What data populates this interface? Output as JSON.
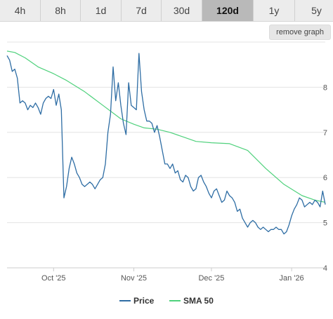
{
  "timeframes": {
    "items": [
      "4h",
      "8h",
      "1d",
      "7d",
      "30d",
      "120d",
      "1y",
      "5y"
    ],
    "active": "120d"
  },
  "remove_graph_label": "remove graph",
  "chart_data": {
    "type": "line",
    "xlabel": "",
    "ylabel": "",
    "ylim": [
      4,
      9
    ],
    "y_ticks": [
      "4",
      "5",
      "6",
      "7",
      "8"
    ],
    "x_ticks": [
      "Oct '25",
      "Nov '25",
      "Dec '25",
      "Jan '26"
    ],
    "grid": true,
    "legend_position": "bottom",
    "series": [
      {
        "name": "Price",
        "color": "#2e6da4",
        "points": [
          [
            "2025-09-13",
            8.7
          ],
          [
            "2025-09-14",
            8.6
          ],
          [
            "2025-09-15",
            8.35
          ],
          [
            "2025-09-16",
            8.4
          ],
          [
            "2025-09-17",
            8.2
          ],
          [
            "2025-09-18",
            7.65
          ],
          [
            "2025-09-19",
            7.7
          ],
          [
            "2025-09-20",
            7.65
          ],
          [
            "2025-09-21",
            7.5
          ],
          [
            "2025-09-22",
            7.6
          ],
          [
            "2025-09-23",
            7.55
          ],
          [
            "2025-09-24",
            7.65
          ],
          [
            "2025-09-25",
            7.55
          ],
          [
            "2025-09-26",
            7.4
          ],
          [
            "2025-09-27",
            7.65
          ],
          [
            "2025-09-28",
            7.75
          ],
          [
            "2025-09-29",
            7.8
          ],
          [
            "2025-09-30",
            7.75
          ],
          [
            "2025-10-01",
            7.95
          ],
          [
            "2025-10-02",
            7.6
          ],
          [
            "2025-10-03",
            7.85
          ],
          [
            "2025-10-04",
            7.5
          ],
          [
            "2025-10-05",
            5.55
          ],
          [
            "2025-10-06",
            5.8
          ],
          [
            "2025-10-07",
            6.2
          ],
          [
            "2025-10-08",
            6.45
          ],
          [
            "2025-10-09",
            6.3
          ],
          [
            "2025-10-10",
            6.1
          ],
          [
            "2025-10-11",
            6.0
          ],
          [
            "2025-10-12",
            5.85
          ],
          [
            "2025-10-13",
            5.8
          ],
          [
            "2025-10-14",
            5.85
          ],
          [
            "2025-10-15",
            5.9
          ],
          [
            "2025-10-16",
            5.85
          ],
          [
            "2025-10-17",
            5.75
          ],
          [
            "2025-10-18",
            5.85
          ],
          [
            "2025-10-19",
            5.95
          ],
          [
            "2025-10-20",
            6.0
          ],
          [
            "2025-10-21",
            6.3
          ],
          [
            "2025-10-22",
            7.0
          ],
          [
            "2025-10-23",
            7.4
          ],
          [
            "2025-10-24",
            8.45
          ],
          [
            "2025-10-25",
            7.7
          ],
          [
            "2025-10-26",
            8.1
          ],
          [
            "2025-10-27",
            7.6
          ],
          [
            "2025-10-28",
            7.2
          ],
          [
            "2025-10-29",
            6.95
          ],
          [
            "2025-10-30",
            8.1
          ],
          [
            "2025-10-31",
            7.6
          ],
          [
            "2025-11-01",
            7.55
          ],
          [
            "2025-11-02",
            7.5
          ],
          [
            "2025-11-03",
            8.75
          ],
          [
            "2025-11-04",
            7.9
          ],
          [
            "2025-11-05",
            7.5
          ],
          [
            "2025-11-06",
            7.25
          ],
          [
            "2025-11-07",
            7.25
          ],
          [
            "2025-11-08",
            7.2
          ],
          [
            "2025-11-09",
            7.0
          ],
          [
            "2025-11-10",
            7.15
          ],
          [
            "2025-11-11",
            6.9
          ],
          [
            "2025-11-12",
            6.6
          ],
          [
            "2025-11-13",
            6.3
          ],
          [
            "2025-11-14",
            6.3
          ],
          [
            "2025-11-15",
            6.2
          ],
          [
            "2025-11-16",
            6.3
          ],
          [
            "2025-11-17",
            6.1
          ],
          [
            "2025-11-18",
            6.15
          ],
          [
            "2025-11-19",
            5.95
          ],
          [
            "2025-11-20",
            5.9
          ],
          [
            "2025-11-21",
            6.05
          ],
          [
            "2025-11-22",
            6.0
          ],
          [
            "2025-11-23",
            5.8
          ],
          [
            "2025-11-24",
            5.7
          ],
          [
            "2025-11-25",
            5.75
          ],
          [
            "2025-11-26",
            6.0
          ],
          [
            "2025-11-27",
            6.05
          ],
          [
            "2025-11-28",
            5.9
          ],
          [
            "2025-11-29",
            5.8
          ],
          [
            "2025-11-30",
            5.65
          ],
          [
            "2025-12-01",
            5.55
          ],
          [
            "2025-12-02",
            5.7
          ],
          [
            "2025-12-03",
            5.75
          ],
          [
            "2025-12-04",
            5.6
          ],
          [
            "2025-12-05",
            5.45
          ],
          [
            "2025-12-06",
            5.5
          ],
          [
            "2025-12-07",
            5.7
          ],
          [
            "2025-12-08",
            5.6
          ],
          [
            "2025-12-09",
            5.55
          ],
          [
            "2025-12-10",
            5.45
          ],
          [
            "2025-12-11",
            5.25
          ],
          [
            "2025-12-12",
            5.3
          ],
          [
            "2025-12-13",
            5.1
          ],
          [
            "2025-12-14",
            5.0
          ],
          [
            "2025-12-15",
            4.9
          ],
          [
            "2025-12-16",
            5.0
          ],
          [
            "2025-12-17",
            5.05
          ],
          [
            "2025-12-18",
            5.0
          ],
          [
            "2025-12-19",
            4.9
          ],
          [
            "2025-12-20",
            4.85
          ],
          [
            "2025-12-21",
            4.9
          ],
          [
            "2025-12-22",
            4.85
          ],
          [
            "2025-12-23",
            4.8
          ],
          [
            "2025-12-24",
            4.85
          ],
          [
            "2025-12-25",
            4.85
          ],
          [
            "2025-12-26",
            4.9
          ],
          [
            "2025-12-27",
            4.85
          ],
          [
            "2025-12-28",
            4.85
          ],
          [
            "2025-12-29",
            4.75
          ],
          [
            "2025-12-30",
            4.8
          ],
          [
            "2025-12-31",
            4.95
          ],
          [
            "2026-01-01",
            5.15
          ],
          [
            "2026-01-02",
            5.3
          ],
          [
            "2026-01-03",
            5.4
          ],
          [
            "2026-01-04",
            5.55
          ],
          [
            "2026-01-05",
            5.5
          ],
          [
            "2026-01-06",
            5.35
          ],
          [
            "2026-01-07",
            5.4
          ],
          [
            "2026-01-08",
            5.45
          ],
          [
            "2026-01-09",
            5.4
          ],
          [
            "2026-01-10",
            5.5
          ],
          [
            "2026-01-11",
            5.45
          ],
          [
            "2026-01-12",
            5.35
          ],
          [
            "2026-01-13",
            5.7
          ],
          [
            "2026-01-14",
            5.4
          ]
        ]
      },
      {
        "name": "SMA 50",
        "color": "#4fd17c",
        "points": [
          [
            "2025-09-13",
            8.8
          ],
          [
            "2025-09-16",
            8.77
          ],
          [
            "2025-09-20",
            8.65
          ],
          [
            "2025-09-25",
            8.45
          ],
          [
            "2025-10-01",
            8.3
          ],
          [
            "2025-10-06",
            8.15
          ],
          [
            "2025-10-13",
            7.9
          ],
          [
            "2025-10-20",
            7.6
          ],
          [
            "2025-10-27",
            7.3
          ],
          [
            "2025-11-01",
            7.18
          ],
          [
            "2025-11-05",
            7.1
          ],
          [
            "2025-11-10",
            7.07
          ],
          [
            "2025-11-15",
            7.0
          ],
          [
            "2025-11-20",
            6.9
          ],
          [
            "2025-11-25",
            6.8
          ],
          [
            "2025-12-01",
            6.77
          ],
          [
            "2025-12-08",
            6.75
          ],
          [
            "2025-12-15",
            6.6
          ],
          [
            "2025-12-22",
            6.2
          ],
          [
            "2025-12-29",
            5.85
          ],
          [
            "2026-01-05",
            5.6
          ],
          [
            "2026-01-10",
            5.5
          ],
          [
            "2026-01-14",
            5.45
          ]
        ]
      }
    ]
  }
}
